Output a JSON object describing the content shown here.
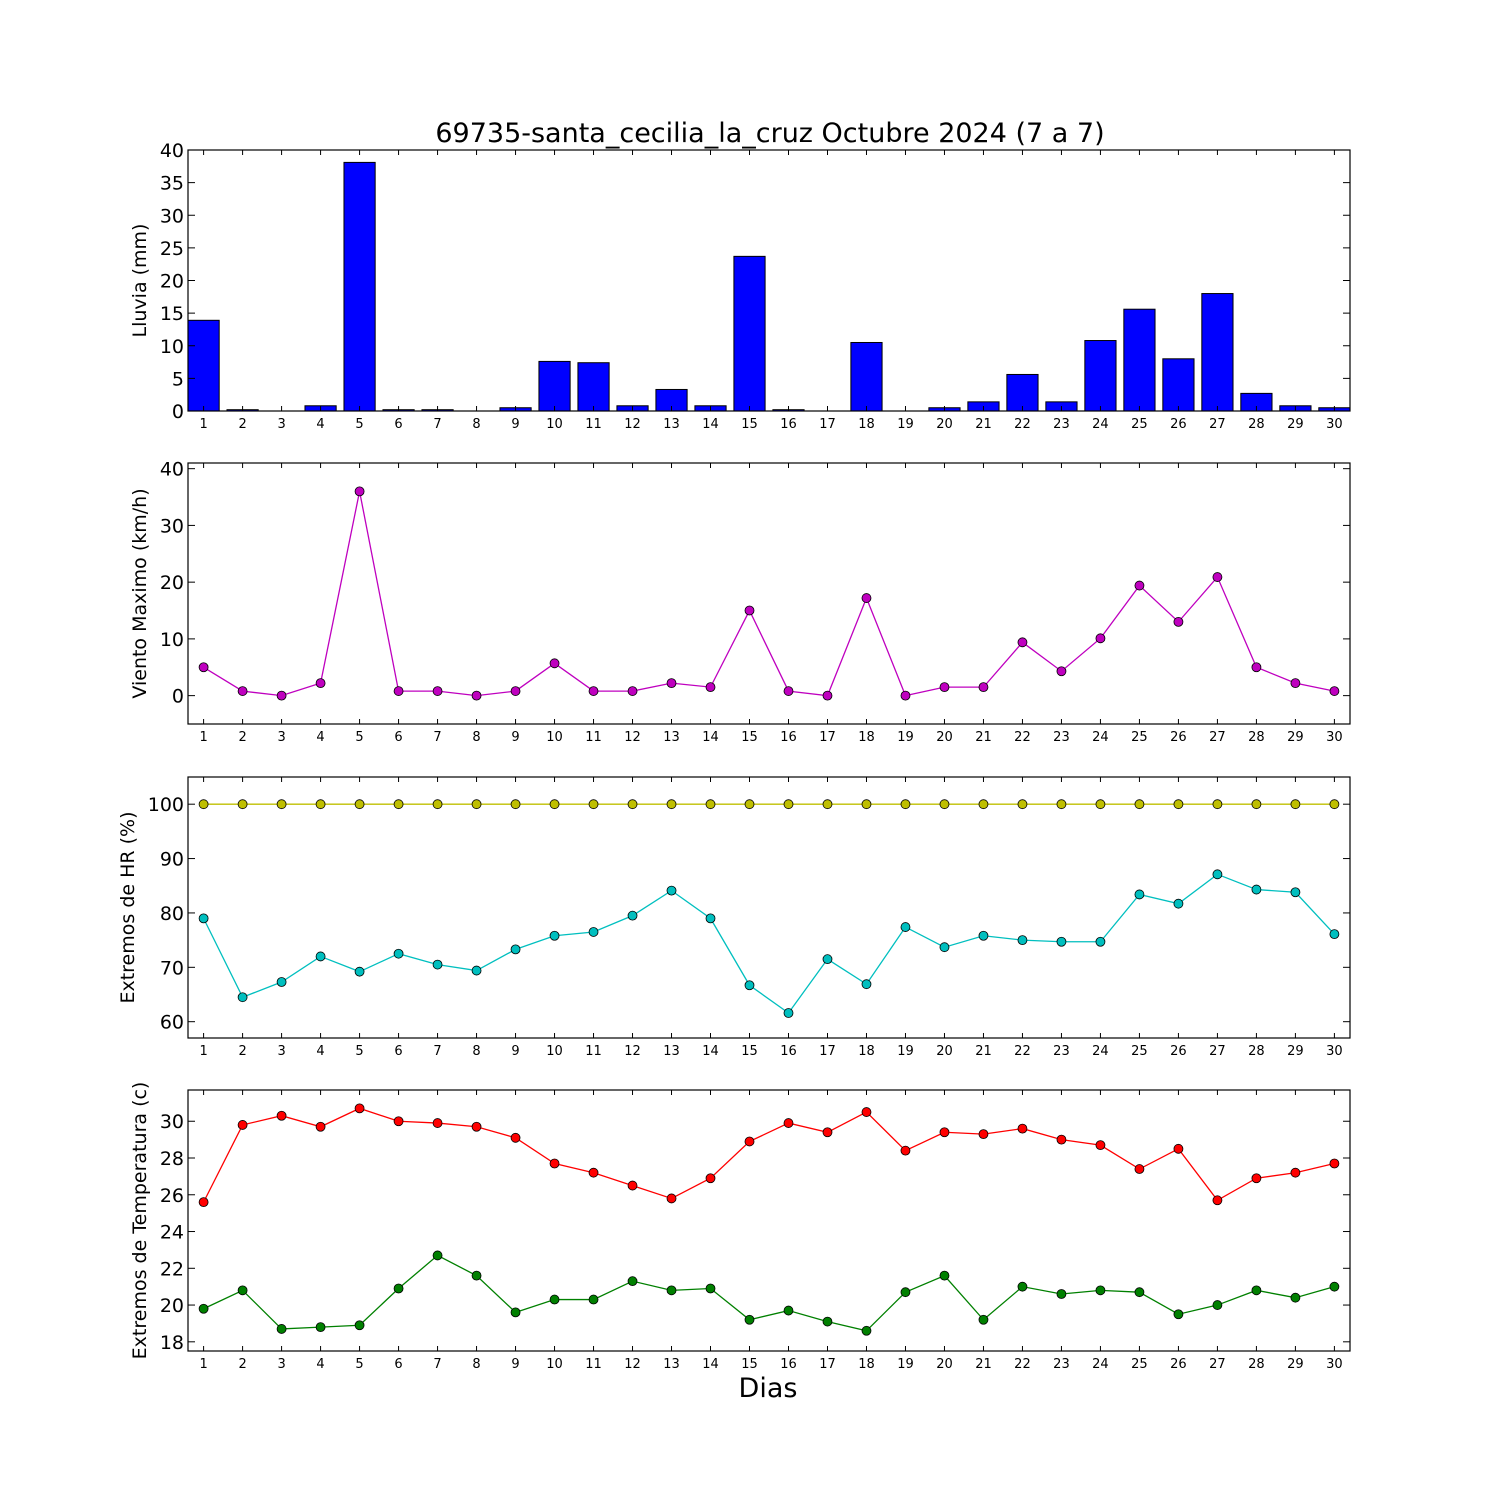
{
  "chart_data": {
    "type": "line",
    "title": "69735-santa_cecilia_la_cruz Octubre 2024  (7 a 7)",
    "xlabel": "Dias",
    "days": [
      1,
      2,
      3,
      4,
      5,
      6,
      7,
      8,
      9,
      10,
      11,
      12,
      13,
      14,
      15,
      16,
      17,
      18,
      19,
      20,
      21,
      22,
      23,
      24,
      25,
      26,
      27,
      28,
      29,
      30
    ],
    "panels": [
      {
        "type": "bar",
        "ylabel": "Lluvia (mm)",
        "ylim": [
          0,
          40
        ],
        "yticks": [
          0,
          5,
          10,
          15,
          20,
          25,
          30,
          35,
          40
        ],
        "series": [
          {
            "color": "#0000ff",
            "values": [
              13.9,
              0.2,
              0,
              0.8,
              38.1,
              0.2,
              0.2,
              0,
              0.5,
              7.6,
              7.4,
              0.8,
              3.3,
              0.8,
              23.7,
              0.2,
              0,
              10.5,
              0,
              0.5,
              1.4,
              5.6,
              1.4,
              10.8,
              15.6,
              8.0,
              18.0,
              2.7,
              0.8,
              0.5
            ]
          }
        ]
      },
      {
        "type": "line",
        "ylabel": "Viento Maximo (km/h)",
        "ylim": [
          -5,
          41
        ],
        "yticks": [
          0,
          10,
          20,
          30,
          40
        ],
        "series": [
          {
            "color": "#bf00bf",
            "values": [
              5.0,
              0.8,
              0,
              2.2,
              36.0,
              0.8,
              0.8,
              0,
              0.8,
              5.7,
              0.8,
              0.8,
              2.2,
              1.5,
              15.0,
              0.8,
              0,
              17.2,
              0,
              1.5,
              1.5,
              9.4,
              4.3,
              10.1,
              19.4,
              13.0,
              20.9,
              5.0,
              2.2,
              0.8
            ]
          }
        ]
      },
      {
        "type": "line",
        "ylabel": "Extremos de HR (%)",
        "ylim": [
          57,
          105
        ],
        "yticks": [
          60,
          70,
          80,
          90,
          100
        ],
        "series": [
          {
            "color": "#bfbf00",
            "values": [
              100,
              100,
              100,
              100,
              100,
              100,
              100,
              100,
              100,
              100,
              100,
              100,
              100,
              100,
              100,
              100,
              100,
              100,
              100,
              100,
              100,
              100,
              100,
              100,
              100,
              100,
              100,
              100,
              100,
              100
            ]
          },
          {
            "color": "#00bfbf",
            "values": [
              79,
              64.5,
              67.3,
              72,
              69.2,
              72.5,
              70.5,
              69.4,
              73.3,
              75.8,
              76.5,
              79.5,
              84.1,
              79,
              66.7,
              61.6,
              71.5,
              66.9,
              77.4,
              73.7,
              75.8,
              75,
              74.7,
              74.7,
              83.4,
              81.7,
              87.1,
              84.3,
              83.8,
              76.1
            ]
          }
        ]
      },
      {
        "type": "line",
        "ylabel": "Extremos de Temperatura (c)",
        "ylim": [
          17.5,
          31.7
        ],
        "yticks": [
          18,
          20,
          22,
          24,
          26,
          28,
          30
        ],
        "series": [
          {
            "color": "#ff0000",
            "values": [
              25.6,
              29.8,
              30.3,
              29.7,
              30.7,
              30.0,
              29.9,
              29.7,
              29.1,
              27.7,
              27.2,
              26.5,
              25.8,
              26.9,
              28.9,
              29.9,
              29.4,
              30.5,
              28.4,
              29.4,
              29.3,
              29.6,
              29.0,
              28.7,
              27.4,
              28.5,
              25.7,
              26.9,
              27.2,
              27.7
            ]
          },
          {
            "color": "#008000",
            "values": [
              19.8,
              20.8,
              18.7,
              18.8,
              18.9,
              20.9,
              22.7,
              21.6,
              19.6,
              20.3,
              20.3,
              21.3,
              20.8,
              20.9,
              19.2,
              19.7,
              19.1,
              18.6,
              20.7,
              21.6,
              19.2,
              21.0,
              20.6,
              20.8,
              20.7,
              19.5,
              20.0,
              20.8,
              20.4,
              21.0
            ]
          }
        ]
      }
    ]
  }
}
